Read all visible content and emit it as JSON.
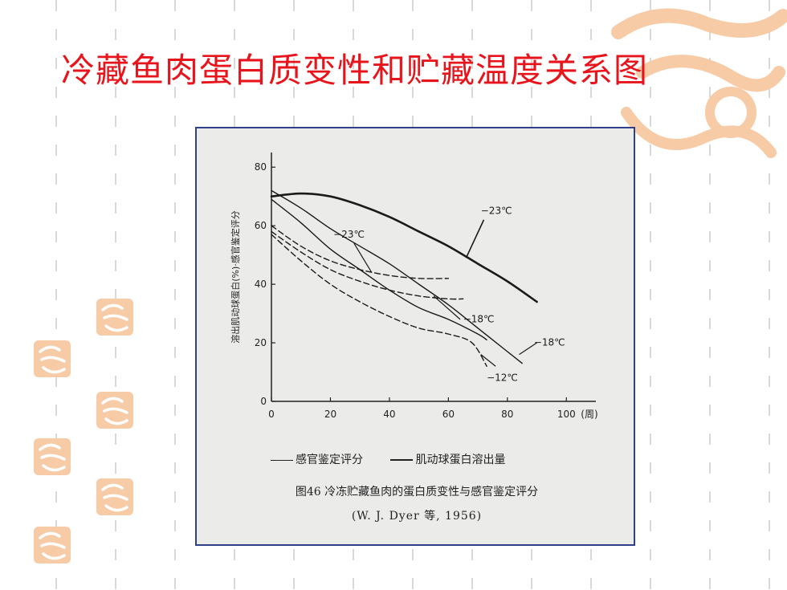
{
  "slide": {
    "title": "冷藏鱼肉蛋白质变性和贮藏温度关系图"
  },
  "figure": {
    "caption": "图46  冷冻贮藏鱼肉的蛋白质变性与感官鉴定评分",
    "source": "(W. J. Dyer 等, 1956)"
  },
  "colors": {
    "title": "#e8141c",
    "frame_border": "#2f3f8a",
    "figure_bg": "#ebebea",
    "watermark": "#f6cba6",
    "grid": "#d9d9d9"
  },
  "chart_data": {
    "type": "line",
    "title": "",
    "xlabel": "",
    "x_unit_label": "(周)",
    "ylabel": "溶出肌动球蛋白(%)·感官鉴定评分",
    "xlim": [
      0,
      110
    ],
    "ylim": [
      0,
      85
    ],
    "x_ticks": [
      "0",
      "20",
      "40",
      "60",
      "80",
      "100"
    ],
    "y_ticks": [
      "0",
      "20",
      "40",
      "60",
      "80"
    ],
    "x_tick_values": [
      0,
      20,
      40,
      60,
      80,
      100
    ],
    "y_tick_values": [
      0,
      20,
      40,
      60,
      80
    ],
    "legend": {
      "sensory_label": "感官鉴定评分",
      "protein_label": "肌动球蛋白溶出量",
      "position": "bottom"
    },
    "series": [
      {
        "name": "肌动球蛋白溶出量 −23℃",
        "style": "solid-thick",
        "label": "−23℃",
        "points": [
          [
            0,
            70
          ],
          [
            10,
            71
          ],
          [
            20,
            70
          ],
          [
            30,
            67
          ],
          [
            40,
            63
          ],
          [
            50,
            58
          ],
          [
            60,
            53
          ],
          [
            70,
            47
          ],
          [
            80,
            41
          ],
          [
            90,
            34
          ]
        ]
      },
      {
        "name": "肌动球蛋白溶出量 −18℃",
        "style": "solid",
        "label": "−18℃",
        "points": [
          [
            0,
            72
          ],
          [
            10,
            66
          ],
          [
            20,
            59
          ],
          [
            30,
            53
          ],
          [
            40,
            47
          ],
          [
            50,
            40
          ],
          [
            60,
            33
          ],
          [
            70,
            25
          ],
          [
            80,
            17
          ],
          [
            85,
            13
          ]
        ]
      },
      {
        "name": "肌动球蛋白溶出量 −12℃",
        "style": "solid",
        "label": "−12℃",
        "points": [
          [
            0,
            69
          ],
          [
            10,
            61
          ],
          [
            20,
            52
          ],
          [
            30,
            45
          ],
          [
            40,
            38
          ],
          [
            50,
            32
          ],
          [
            60,
            28
          ],
          [
            70,
            23
          ],
          [
            73,
            21
          ]
        ]
      },
      {
        "name": "感官鉴定评分 −23℃",
        "style": "dashed",
        "label": "−23℃",
        "points": [
          [
            0,
            60
          ],
          [
            10,
            53
          ],
          [
            20,
            48
          ],
          [
            30,
            45
          ],
          [
            40,
            43
          ],
          [
            50,
            42
          ],
          [
            60,
            42
          ]
        ]
      },
      {
        "name": "感官鉴定评分 −18℃",
        "style": "dashed",
        "label": "−18℃",
        "points": [
          [
            0,
            58
          ],
          [
            10,
            51
          ],
          [
            20,
            45
          ],
          [
            30,
            41
          ],
          [
            40,
            38
          ],
          [
            50,
            36
          ],
          [
            60,
            35
          ],
          [
            65,
            35
          ]
        ]
      },
      {
        "name": "感官鉴定评分 −12℃",
        "style": "dashed",
        "label": "−12℃",
        "points": [
          [
            0,
            57
          ],
          [
            10,
            48
          ],
          [
            20,
            40
          ],
          [
            30,
            34
          ],
          [
            40,
            29
          ],
          [
            50,
            25
          ],
          [
            60,
            23
          ],
          [
            68,
            20
          ],
          [
            73,
            12
          ]
        ]
      }
    ],
    "annotations": [
      {
        "text": "−23℃",
        "for": "肌动球蛋白溶出量 −23℃"
      },
      {
        "text": "−23℃",
        "for": "感官鉴定评分 −23℃"
      },
      {
        "text": "−18℃",
        "for": "感官鉴定评分 −18℃"
      },
      {
        "text": "−18℃",
        "for": "肌动球蛋白溶出量 −18℃"
      },
      {
        "text": "−12℃",
        "for": "−12℃ 两条曲线"
      }
    ]
  }
}
